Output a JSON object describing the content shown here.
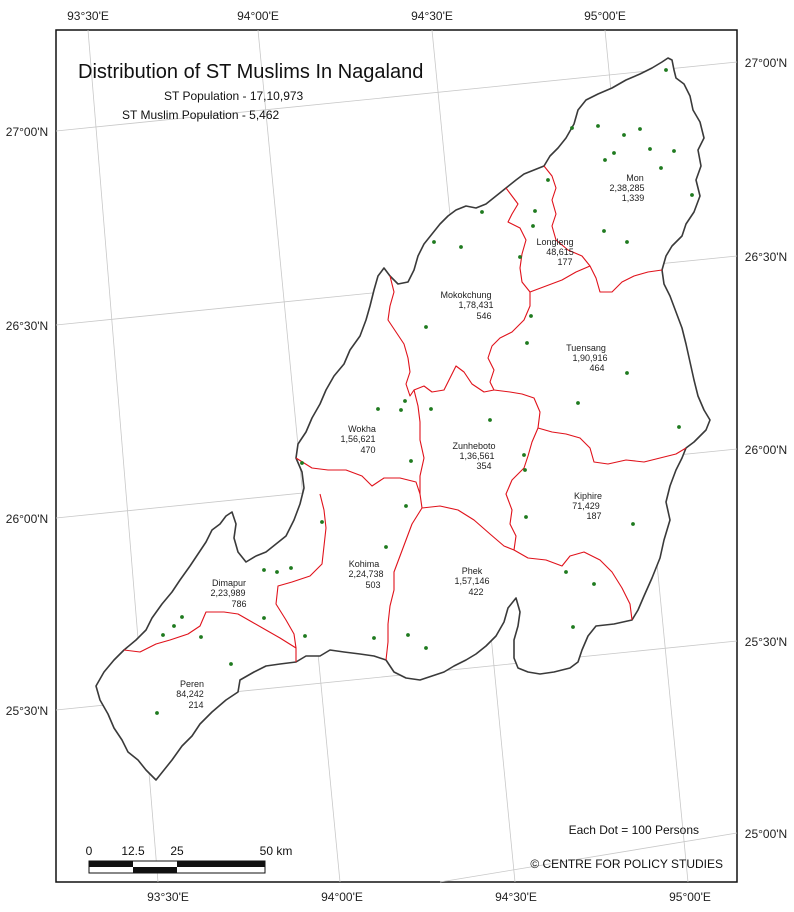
{
  "map": {
    "title": "Distribution of ST Muslims In Nagaland",
    "st_population": "ST Population - 17,10,973",
    "st_muslim_population": "ST Muslim Population - 5,462",
    "dot_legend": "Each Dot = 100 Persons",
    "credit": "© CENTRE FOR POLICY STUDIES"
  },
  "graticule": {
    "top": [
      "93°30'E",
      "94°00'E",
      "94°30'E",
      "95°00'E"
    ],
    "bottom": [
      "93°30'E",
      "94°00'E",
      "94°30'E",
      "95°00'E"
    ],
    "left": [
      "27°00'N",
      "26°30'N",
      "26°00'N",
      "25°30'N"
    ],
    "right": [
      "27°00'N",
      "26°30'N",
      "26°00'N",
      "25°30'N",
      "25°00'N"
    ]
  },
  "scale_bar": {
    "ticks": [
      "0",
      "12.5",
      "25",
      "50 km"
    ]
  },
  "districts": [
    {
      "name": "Mon",
      "population": "2,38,285",
      "st_muslims": "1,339"
    },
    {
      "name": "Longleng",
      "population": "48,615",
      "st_muslims": "177"
    },
    {
      "name": "Mokokchung",
      "population": "1,78,431",
      "st_muslims": "546"
    },
    {
      "name": "Tuensang",
      "population": "1,90,916",
      "st_muslims": "464"
    },
    {
      "name": "Wokha",
      "population": "1,56,621",
      "st_muslims": "470"
    },
    {
      "name": "Zunheboto",
      "population": "1,36,561",
      "st_muslims": "354"
    },
    {
      "name": "Kiphire",
      "population": "71,429",
      "st_muslims": "187"
    },
    {
      "name": "Kohima",
      "population": "2,24,738",
      "st_muslims": "503"
    },
    {
      "name": "Phek",
      "population": "1,57,146",
      "st_muslims": "422"
    },
    {
      "name": "Dimapur",
      "population": "2,23,989",
      "st_muslims": "786"
    },
    {
      "name": "Peren",
      "population": "84,242",
      "st_muslims": "214"
    }
  ],
  "colors": {
    "state_border": "#3a3a3a",
    "district_border": "#e0121b",
    "dot": "#1f7a1f",
    "graticule": "#c8c8c8",
    "frame": "#111111"
  }
}
